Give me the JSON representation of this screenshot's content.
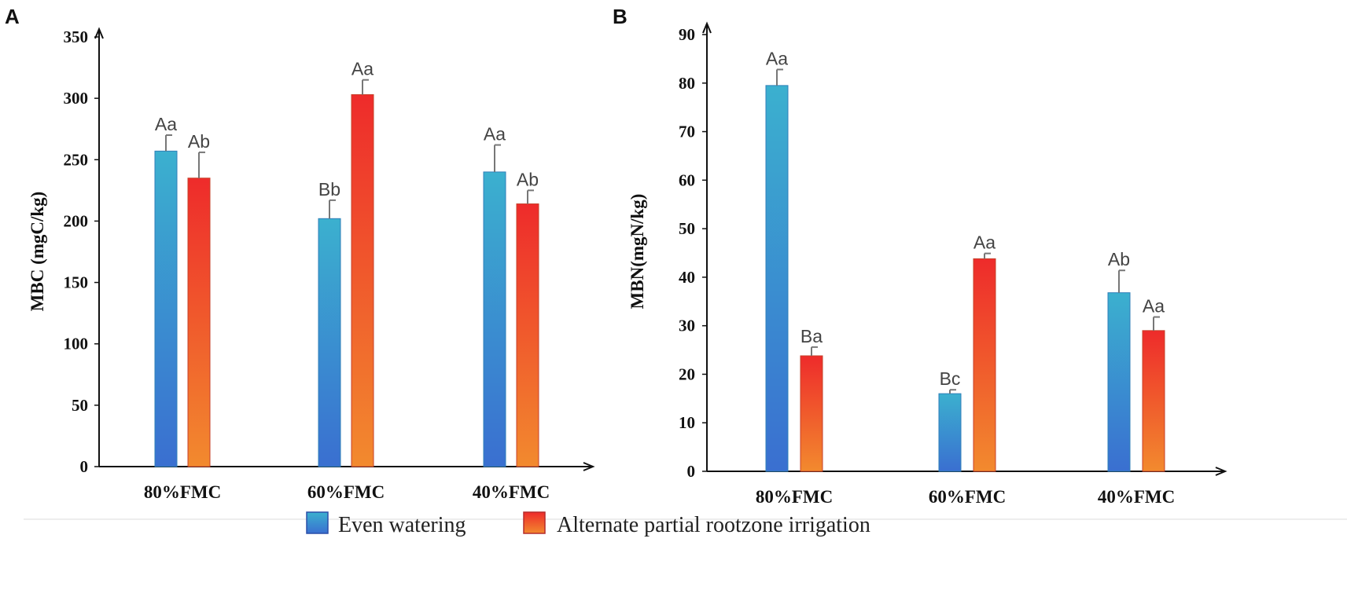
{
  "legend": {
    "series_a": "Even watering",
    "series_b": "Alternate partial rootzone irrigation"
  },
  "colors": {
    "blue_top": "#3bb0cf",
    "blue_bottom": "#3a6fd0",
    "red_top": "#ee2b2b",
    "red_bottom": "#f28a2e",
    "axis": "#111111"
  },
  "chart_data": [
    {
      "type": "bar",
      "panel": "A",
      "ylabel": "MBC (mgC/kg)",
      "xlabel": "",
      "ylim": [
        0,
        350
      ],
      "yticks": [
        0,
        50,
        100,
        150,
        200,
        250,
        300,
        350
      ],
      "categories": [
        "80%FMC",
        "60%FMC",
        "40%FMC"
      ],
      "series": [
        {
          "name": "Even watering",
          "values": [
            257,
            202,
            240
          ],
          "errors": [
            13,
            15,
            22
          ],
          "labels": [
            "Aa",
            "Bb",
            "Aa"
          ]
        },
        {
          "name": "Alternate partial rootzone irrigation",
          "values": [
            235,
            303,
            214
          ],
          "errors": [
            21,
            12,
            11
          ],
          "labels": [
            "Ab",
            "Aa",
            "Ab"
          ]
        }
      ]
    },
    {
      "type": "bar",
      "panel": "B",
      "ylabel": "MBN(mgN/kg)",
      "xlabel": "",
      "ylim": [
        0,
        90
      ],
      "yticks": [
        0,
        10,
        20,
        30,
        40,
        50,
        60,
        70,
        80,
        90
      ],
      "categories": [
        "80%FMC",
        "60%FMC",
        "40%FMC"
      ],
      "series": [
        {
          "name": "Even watering",
          "values": [
            79.5,
            16,
            36.8
          ],
          "errors": [
            3.3,
            0.8,
            4.6
          ],
          "labels": [
            "Aa",
            "Bc",
            "Ab"
          ]
        },
        {
          "name": "Alternate partial rootzone irrigation",
          "values": [
            23.8,
            43.8,
            29
          ],
          "errors": [
            1.8,
            1.1,
            2.8
          ],
          "labels": [
            "Ba",
            "Aa",
            "Aa"
          ]
        }
      ]
    }
  ]
}
